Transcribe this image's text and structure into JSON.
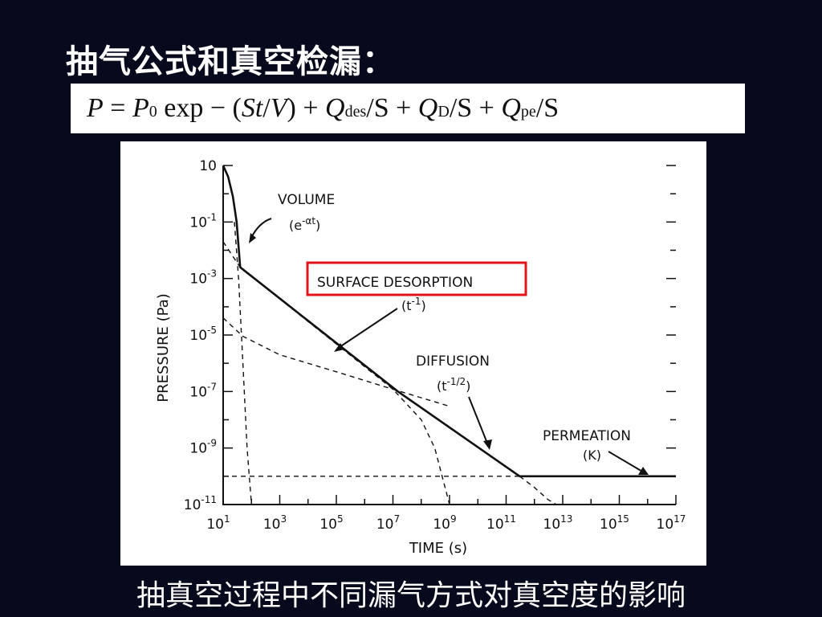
{
  "slide": {
    "title": "抽气公式和真空检漏：",
    "caption": "抽真空过程中不同漏气方式对真空度的影响"
  },
  "formula": {
    "p": "P",
    "eq": " = ",
    "p0": "P",
    "p0_sub": "0",
    "exp": " exp − (",
    "st": "St",
    "slash1": "/",
    "v": "V",
    "plus1": ") + ",
    "q1": "Q",
    "q1_sub": "des",
    "s1": "/S + ",
    "q2": "Q",
    "q2_sub": "D",
    "s2": "/S + ",
    "q3": "Q",
    "q3_sub": "pe",
    "s3": "/S"
  },
  "chart_data": {
    "type": "line",
    "x_scale": "log",
    "y_scale": "log",
    "xlabel": "TIME (s)",
    "ylabel": "PRESSURE (Pa)",
    "xlim": [
      10,
      1e+17
    ],
    "ylim": [
      1e-11,
      10
    ],
    "x_ticks": [
      {
        "base": "10",
        "exp": "1"
      },
      {
        "base": "10",
        "exp": "3"
      },
      {
        "base": "10",
        "exp": "5"
      },
      {
        "base": "10",
        "exp": "7"
      },
      {
        "base": "10",
        "exp": "9"
      },
      {
        "base": "10",
        "exp": "11"
      },
      {
        "base": "10",
        "exp": "13"
      },
      {
        "base": "10",
        "exp": "15"
      },
      {
        "base": "10",
        "exp": "17"
      }
    ],
    "y_ticks": [
      {
        "base": "10",
        "exp": ""
      },
      {
        "base": "10",
        "exp": "-1"
      },
      {
        "base": "10",
        "exp": "-3"
      },
      {
        "base": "10",
        "exp": "-5"
      },
      {
        "base": "10",
        "exp": "-7"
      },
      {
        "base": "10",
        "exp": "-9"
      },
      {
        "base": "10",
        "exp": "-11"
      }
    ],
    "series": [
      {
        "style": "solid",
        "x": [
          10,
          15,
          22,
          30,
          40,
          15000000.0,
          300000000000.0,
          1e+17
        ],
        "y": [
          10,
          4,
          0.8,
          0.1,
          0.0025,
          1e-07,
          1e-10,
          1e-10
        ]
      },
      {
        "style": "dashed",
        "x": [
          10,
          40,
          10000000.0,
          100000000.0,
          300000000.0,
          1000000000.0
        ],
        "y": [
          0.02,
          0.0025,
          1.2e-07,
          1e-08,
          1e-09,
          1e-11
        ]
      },
      {
        "style": "dashed",
        "x": [
          10,
          50,
          1000.0,
          100000.0,
          10000000.0,
          1000000000.0
        ],
        "y": [
          4e-05,
          9e-06,
          2e-06,
          5e-07,
          1.2e-07,
          3e-08
        ]
      },
      {
        "style": "dashed",
        "x": [
          10,
          1e+17
        ],
        "y": [
          1e-10,
          1e-10
        ]
      },
      {
        "style": "dashed",
        "x": [
          25,
          35,
          50,
          70,
          100
        ],
        "y": [
          0.1,
          0.001,
          1e-06,
          1e-09,
          1e-11
        ]
      },
      {
        "style": "dashed",
        "x": [
          300000000000.0,
          1000000000000.0,
          3000000000000.0,
          6000000000000.0
        ],
        "y": [
          1e-10,
          4e-11,
          1.5e-11,
          1e-11
        ]
      }
    ],
    "annotations": {
      "volume": {
        "label": "VOLUME",
        "formula_base": "(e",
        "formula_exp": "-αt",
        "formula_end": ")"
      },
      "surface": {
        "label": "SURFACE DESORPTION",
        "formula_base": "(t",
        "formula_exp": "-1",
        "formula_end": ")"
      },
      "diffusion": {
        "label": "DIFFUSION",
        "formula_base": "(t",
        "formula_exp": "-1/2",
        "formula_end": ")"
      },
      "permeation": {
        "label": "PERMEATION",
        "formula": "(K)"
      }
    },
    "highlight_color": "#e0141a"
  }
}
